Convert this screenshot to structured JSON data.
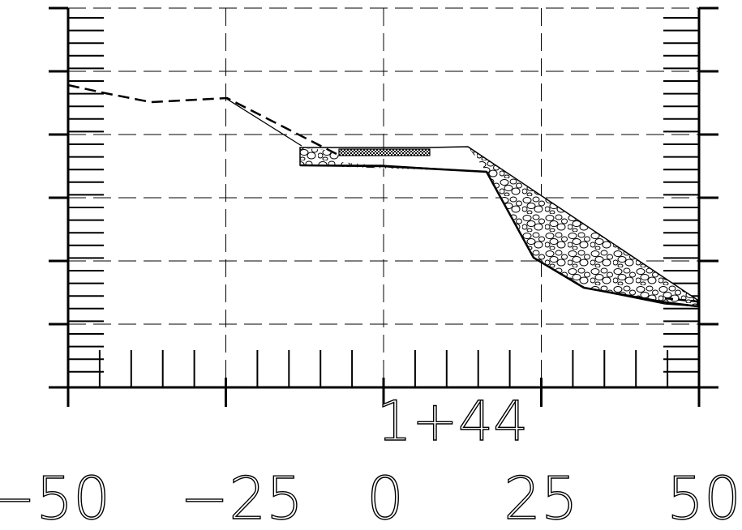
{
  "station_label": "1+44",
  "axis": {
    "offset_ticks": [
      -50,
      -25,
      0,
      25,
      50
    ],
    "tick_labels": [
      "−50",
      "−25",
      "0",
      "25",
      "50"
    ],
    "grid_style": "dashed",
    "horizontal_gridline_count": 5
  },
  "profile": {
    "existing_ground": "dashed",
    "proposed_section": "solid",
    "riprap_fill": "rock hatch pattern",
    "pavement": "checkered hatch strip"
  },
  "colors": {
    "line": "#000000",
    "background": "#ffffff"
  }
}
